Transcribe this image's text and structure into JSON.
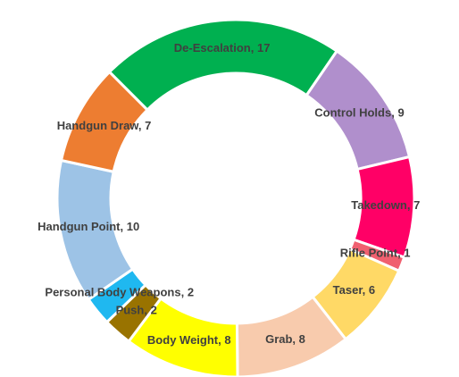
{
  "chart_data": {
    "type": "donut",
    "values": [
      17,
      9,
      7,
      1,
      6,
      8,
      8,
      2,
      2,
      10,
      7
    ],
    "value_labels": [
      "De-Escalation, 17",
      "Control Holds, 9",
      "Takedown, 7",
      "Rifle Point, 1",
      "Taser, 6",
      "Grab, 8",
      "Body Weight, 8",
      "Push, 2",
      "Personal Body Weapons, 2",
      "Handgun Point, 10",
      "Handgun Draw, 7"
    ],
    "colors": [
      "#00b050",
      "#b08fcc",
      "#ff0066",
      "#f06070",
      "#ffd966",
      "#f8cbad",
      "#ffff00",
      "#997300",
      "#1fb8f0",
      "#9dc3e6",
      "#ed7d31"
    ]
  }
}
